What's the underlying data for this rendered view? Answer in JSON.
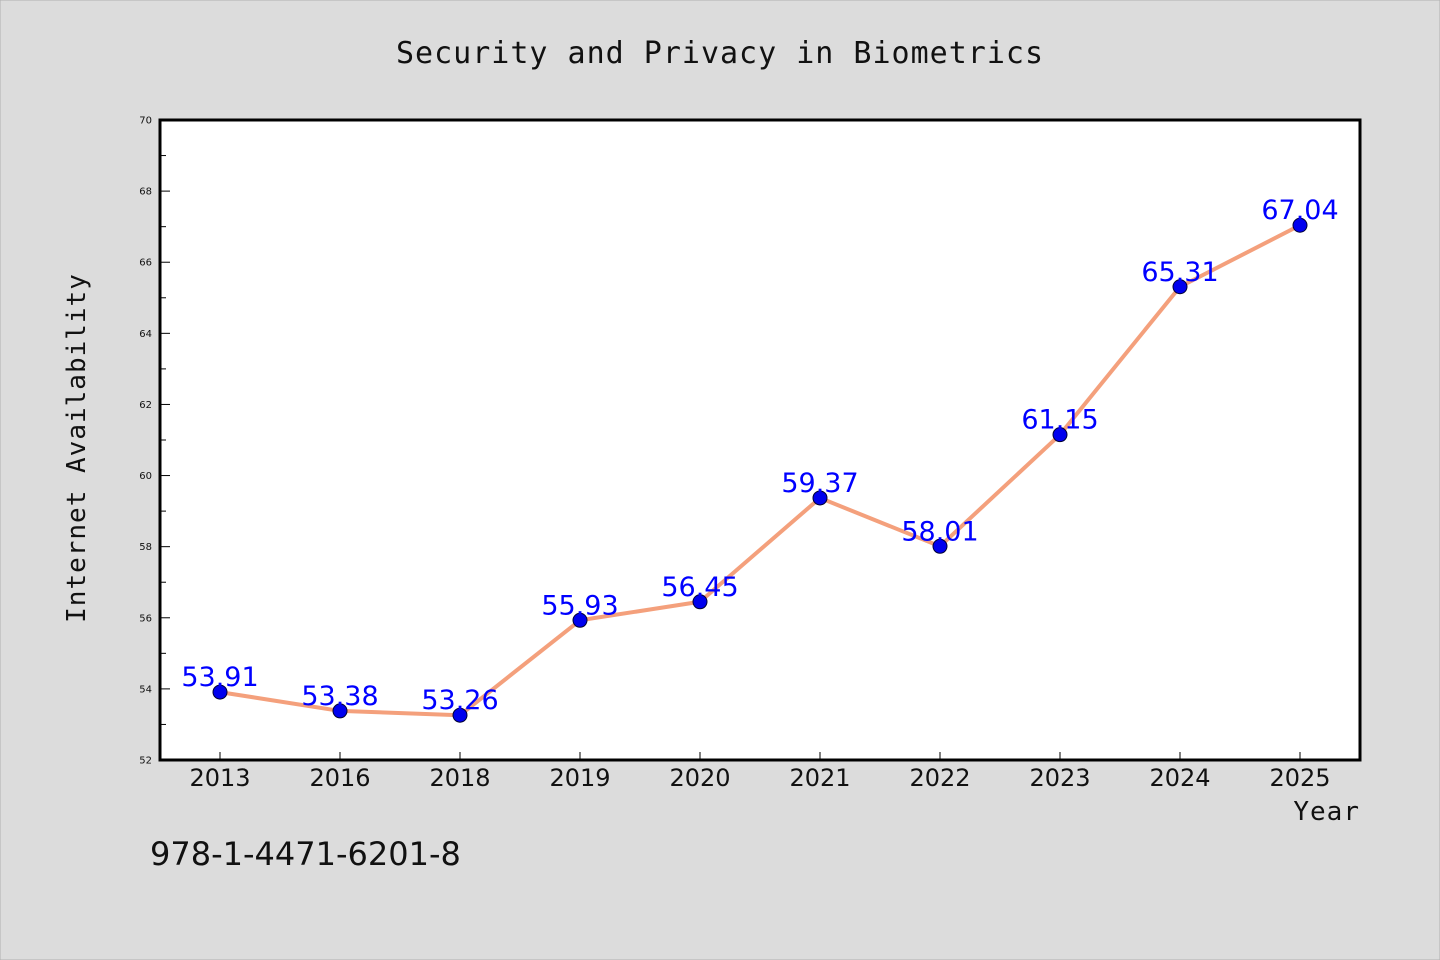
{
  "chart_data": {
    "type": "line",
    "title": "Security and Privacy in Biometrics",
    "xlabel": "Year",
    "ylabel": "Internet Availability",
    "categories": [
      "2013",
      "2016",
      "2018",
      "2019",
      "2020",
      "2021",
      "2022",
      "2023",
      "2024",
      "2025"
    ],
    "series": [
      {
        "values": [
          53.91,
          53.38,
          53.26,
          55.93,
          56.45,
          59.37,
          58.01,
          61.15,
          65.31,
          67.04
        ],
        "labels": [
          "53.91",
          "53.38",
          "53.26",
          "55.93",
          "56.45",
          "59.37",
          "58.01",
          "61.15",
          "65.31",
          "67.04"
        ],
        "line_color": "#f4a07c",
        "marker_color": "#0000ee",
        "label_color": "#0000ff"
      }
    ],
    "ylim": [
      52,
      70
    ],
    "yticks": [
      52,
      54,
      56,
      58,
      60,
      62,
      64,
      66,
      68,
      70
    ],
    "grid": false,
    "legend": "none",
    "background": "#dcdcdc",
    "plot_background": "#ffffff"
  },
  "annotation": {
    "isbn": "978-1-4471-6201-8"
  }
}
